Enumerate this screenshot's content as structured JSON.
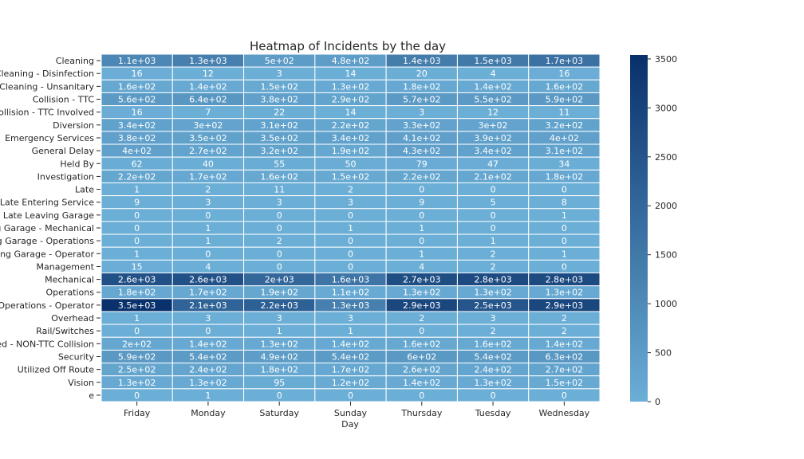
{
  "chart_data": {
    "type": "heatmap",
    "title": "Heatmap of Incidents by the day",
    "xlabel": "Day",
    "ylabel": "",
    "columns": [
      "Friday",
      "Monday",
      "Saturday",
      "Sunday",
      "Thursday",
      "Tuesday",
      "Wednesday"
    ],
    "rows": [
      "Cleaning",
      "Cleaning - Disinfection",
      "Cleaning - Unsanitary",
      "Collision - TTC",
      "Collision - TTC Involved",
      "Diversion",
      "Emergency Services",
      "General Delay",
      "Held By",
      "Investigation",
      "Late",
      "Late Entering Service",
      "Late Leaving Garage",
      "ng Garage - Mechanical",
      "ng Garage - Operations",
      "aving Garage - Operator",
      "Management",
      "Mechanical",
      "Operations",
      "Operations - Operator",
      "Overhead",
      "Rail/Switches",
      "ed - NON-TTC Collision",
      "Security",
      "Utilized Off Route",
      "Vision",
      "e"
    ],
    "values": [
      [
        1100,
        1300,
        500,
        480,
        1400,
        1500,
        1700
      ],
      [
        16,
        12,
        3,
        14,
        20,
        4,
        16
      ],
      [
        160,
        140,
        150,
        130,
        180,
        140,
        160
      ],
      [
        560,
        640,
        380,
        290,
        570,
        550,
        590
      ],
      [
        16,
        7,
        22,
        14,
        3,
        12,
        11
      ],
      [
        340,
        300,
        310,
        220,
        330,
        300,
        320
      ],
      [
        380,
        350,
        350,
        340,
        410,
        390,
        400
      ],
      [
        400,
        270,
        320,
        190,
        430,
        340,
        310
      ],
      [
        62,
        40,
        55,
        50,
        79,
        47,
        34
      ],
      [
        220,
        170,
        160,
        150,
        220,
        210,
        180
      ],
      [
        1,
        2,
        11,
        2,
        0,
        0,
        0
      ],
      [
        9,
        3,
        3,
        3,
        9,
        5,
        8
      ],
      [
        0,
        0,
        0,
        0,
        0,
        0,
        1
      ],
      [
        0,
        1,
        0,
        1,
        1,
        0,
        0
      ],
      [
        0,
        1,
        2,
        0,
        0,
        1,
        0
      ],
      [
        1,
        0,
        0,
        0,
        1,
        2,
        1
      ],
      [
        15,
        4,
        0,
        0,
        4,
        2,
        0
      ],
      [
        2600,
        2600,
        2000,
        1600,
        2700,
        2800,
        2800
      ],
      [
        180,
        170,
        190,
        110,
        130,
        130,
        130
      ],
      [
        3500,
        2100,
        2200,
        1300,
        2900,
        2500,
        2900
      ],
      [
        1,
        3,
        3,
        3,
        2,
        3,
        2
      ],
      [
        0,
        0,
        1,
        1,
        0,
        2,
        2
      ],
      [
        200,
        140,
        130,
        140,
        160,
        160,
        140
      ],
      [
        590,
        540,
        490,
        540,
        600,
        540,
        630
      ],
      [
        250,
        240,
        180,
        170,
        260,
        240,
        270
      ],
      [
        130,
        130,
        95,
        120,
        140,
        130,
        150
      ],
      [
        0,
        1,
        0,
        0,
        0,
        0,
        0
      ]
    ],
    "annotations": [
      [
        "1.1e+03",
        "1.3e+03",
        "5e+02",
        "4.8e+02",
        "1.4e+03",
        "1.5e+03",
        "1.7e+03"
      ],
      [
        "16",
        "12",
        "3",
        "14",
        "20",
        "4",
        "16"
      ],
      [
        "1.6e+02",
        "1.4e+02",
        "1.5e+02",
        "1.3e+02",
        "1.8e+02",
        "1.4e+02",
        "1.6e+02"
      ],
      [
        "5.6e+02",
        "6.4e+02",
        "3.8e+02",
        "2.9e+02",
        "5.7e+02",
        "5.5e+02",
        "5.9e+02"
      ],
      [
        "16",
        "7",
        "22",
        "14",
        "3",
        "12",
        "11"
      ],
      [
        "3.4e+02",
        "3e+02",
        "3.1e+02",
        "2.2e+02",
        "3.3e+02",
        "3e+02",
        "3.2e+02"
      ],
      [
        "3.8e+02",
        "3.5e+02",
        "3.5e+02",
        "3.4e+02",
        "4.1e+02",
        "3.9e+02",
        "4e+02"
      ],
      [
        "4e+02",
        "2.7e+02",
        "3.2e+02",
        "1.9e+02",
        "4.3e+02",
        "3.4e+02",
        "3.1e+02"
      ],
      [
        "62",
        "40",
        "55",
        "50",
        "79",
        "47",
        "34"
      ],
      [
        "2.2e+02",
        "1.7e+02",
        "1.6e+02",
        "1.5e+02",
        "2.2e+02",
        "2.1e+02",
        "1.8e+02"
      ],
      [
        "1",
        "2",
        "11",
        "2",
        "0",
        "0",
        "0"
      ],
      [
        "9",
        "3",
        "3",
        "3",
        "9",
        "5",
        "8"
      ],
      [
        "0",
        "0",
        "0",
        "0",
        "0",
        "0",
        "1"
      ],
      [
        "0",
        "1",
        "0",
        "1",
        "1",
        "0",
        "0"
      ],
      [
        "0",
        "1",
        "2",
        "0",
        "0",
        "1",
        "0"
      ],
      [
        "1",
        "0",
        "0",
        "0",
        "1",
        "2",
        "1"
      ],
      [
        "15",
        "4",
        "0",
        "0",
        "4",
        "2",
        "0"
      ],
      [
        "2.6e+03",
        "2.6e+03",
        "2e+03",
        "1.6e+03",
        "2.7e+03",
        "2.8e+03",
        "2.8e+03"
      ],
      [
        "1.8e+02",
        "1.7e+02",
        "1.9e+02",
        "1.1e+02",
        "1.3e+02",
        "1.3e+02",
        "1.3e+02"
      ],
      [
        "3.5e+03",
        "2.1e+03",
        "2.2e+03",
        "1.3e+03",
        "2.9e+03",
        "2.5e+03",
        "2.9e+03"
      ],
      [
        "1",
        "3",
        "3",
        "3",
        "2",
        "3",
        "2"
      ],
      [
        "0",
        "0",
        "1",
        "1",
        "0",
        "2",
        "2"
      ],
      [
        "2e+02",
        "1.4e+02",
        "1.3e+02",
        "1.4e+02",
        "1.6e+02",
        "1.6e+02",
        "1.4e+02"
      ],
      [
        "5.9e+02",
        "5.4e+02",
        "4.9e+02",
        "5.4e+02",
        "6e+02",
        "5.4e+02",
        "6.3e+02"
      ],
      [
        "2.5e+02",
        "2.4e+02",
        "1.8e+02",
        "1.7e+02",
        "2.6e+02",
        "2.4e+02",
        "2.7e+02"
      ],
      [
        "1.3e+02",
        "1.3e+02",
        "95",
        "1.2e+02",
        "1.4e+02",
        "1.3e+02",
        "1.5e+02"
      ],
      [
        "0",
        "1",
        "0",
        "0",
        "0",
        "0",
        "0"
      ]
    ],
    "colorbar": {
      "range": [
        0,
        3540
      ],
      "ticks": [
        "0",
        "500",
        "1000",
        "1500",
        "2000",
        "2500",
        "3000",
        "3500"
      ],
      "tick_values": [
        0,
        500,
        1000,
        1500,
        2000,
        2500,
        3000,
        3500
      ],
      "color_low": "#6baed6",
      "color_high": "#08306b"
    },
    "cell_border_color": "#ffffff"
  }
}
